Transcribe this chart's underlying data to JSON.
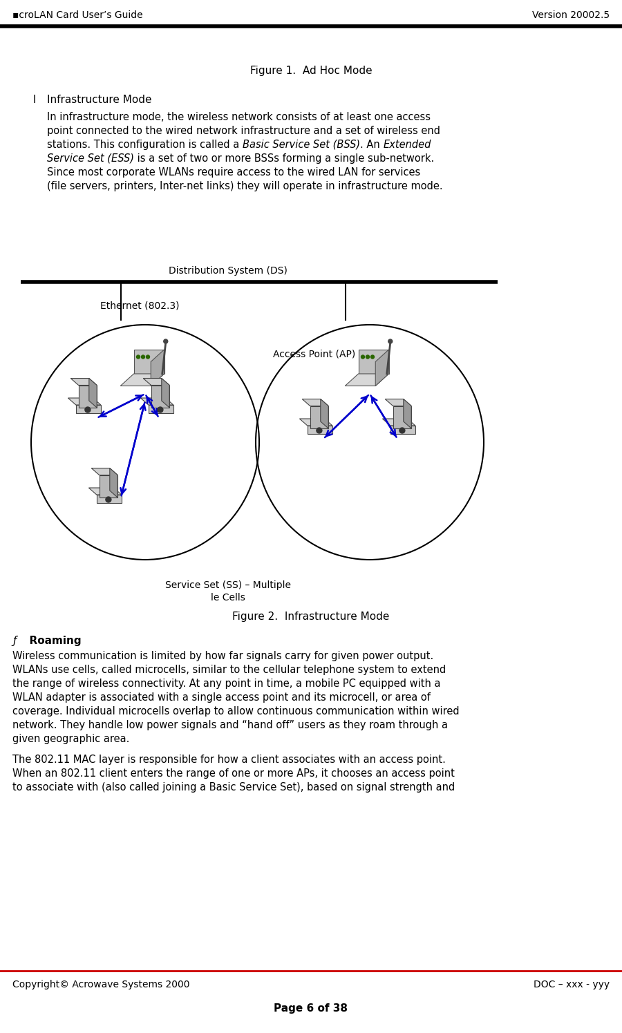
{
  "header_left": "▪croLAN Card User’s Guide",
  "header_right": "Version 20002.5",
  "footer_line_color": "#cc0000",
  "footer_left": "Copyright© Acrowave Systems 2000",
  "footer_right": "DOC – xxx - yyy",
  "footer_page": "Page 6 of 38",
  "fig1_caption": "Figure 1.  Ad Hoc Mode",
  "section_bullet": "l",
  "section_title": "Infrastructure Mode",
  "fig2_label_ds": "Distribution System (DS)",
  "fig2_label_eth": "Ethernet (802.3)",
  "fig2_label_ap": "Access Point (AP)",
  "fig2_label_ss1": "Service Set (SS) – Multiple",
  "fig2_label_ss2": "le Cells",
  "fig2_caption": "Figure 2.  Infrastructure Mode",
  "roaming_bullet": "ƒ",
  "roaming_title": "  Roaming",
  "roaming_lines": [
    "Wireless communication is limited by how far signals carry for given power output.",
    "WLANs use cells, called microcells, similar to the cellular telephone system to extend",
    "the range of wireless connectivity. At any point in time, a mobile PC equipped with a",
    "WLAN adapter is associated with a single access point and its microcell, or area of",
    "coverage. Individual microcells overlap to allow continuous communication within wired",
    "network. They handle low power signals and “hand off” users as they roam through a",
    "given geographic area."
  ],
  "roaming_lines2": [
    "The 802.11 MAC layer is responsible for how a client associates with an access point.",
    "When an 802.11 client enters the range of one or more APs, it chooses an access point",
    "to associate with (also called joining a Basic Service Set), based on signal strength and"
  ],
  "body_lines": [
    [
      "In infrastructure mode, the wireless network consists of at least one access",
      "normal"
    ],
    [
      "point connected to the wired network infrastructure and a set of wireless end",
      "normal"
    ],
    [
      "stations. This configuration is called a ",
      "normal",
      "Basic Service Set (BSS)",
      "italic",
      ". An ",
      "normal",
      "Extended",
      "italic"
    ],
    [
      "Service Set (ESS)",
      "italic",
      " is a set of two or more BSSs forming a single sub-network.",
      "normal"
    ],
    [
      "Since most corporate WLANs require access to the wired LAN for services",
      "normal"
    ],
    [
      "(file servers, printers, Inter-net links) they will operate in infrastructure mode.",
      "normal"
    ]
  ],
  "bg_color": "#ffffff",
  "text_color": "#000000",
  "arrow_color": "#0000cc",
  "fs_header": 10,
  "fs_body": 10.5,
  "fs_caption": 11,
  "fs_section_title": 11,
  "fs_roaming": 11
}
